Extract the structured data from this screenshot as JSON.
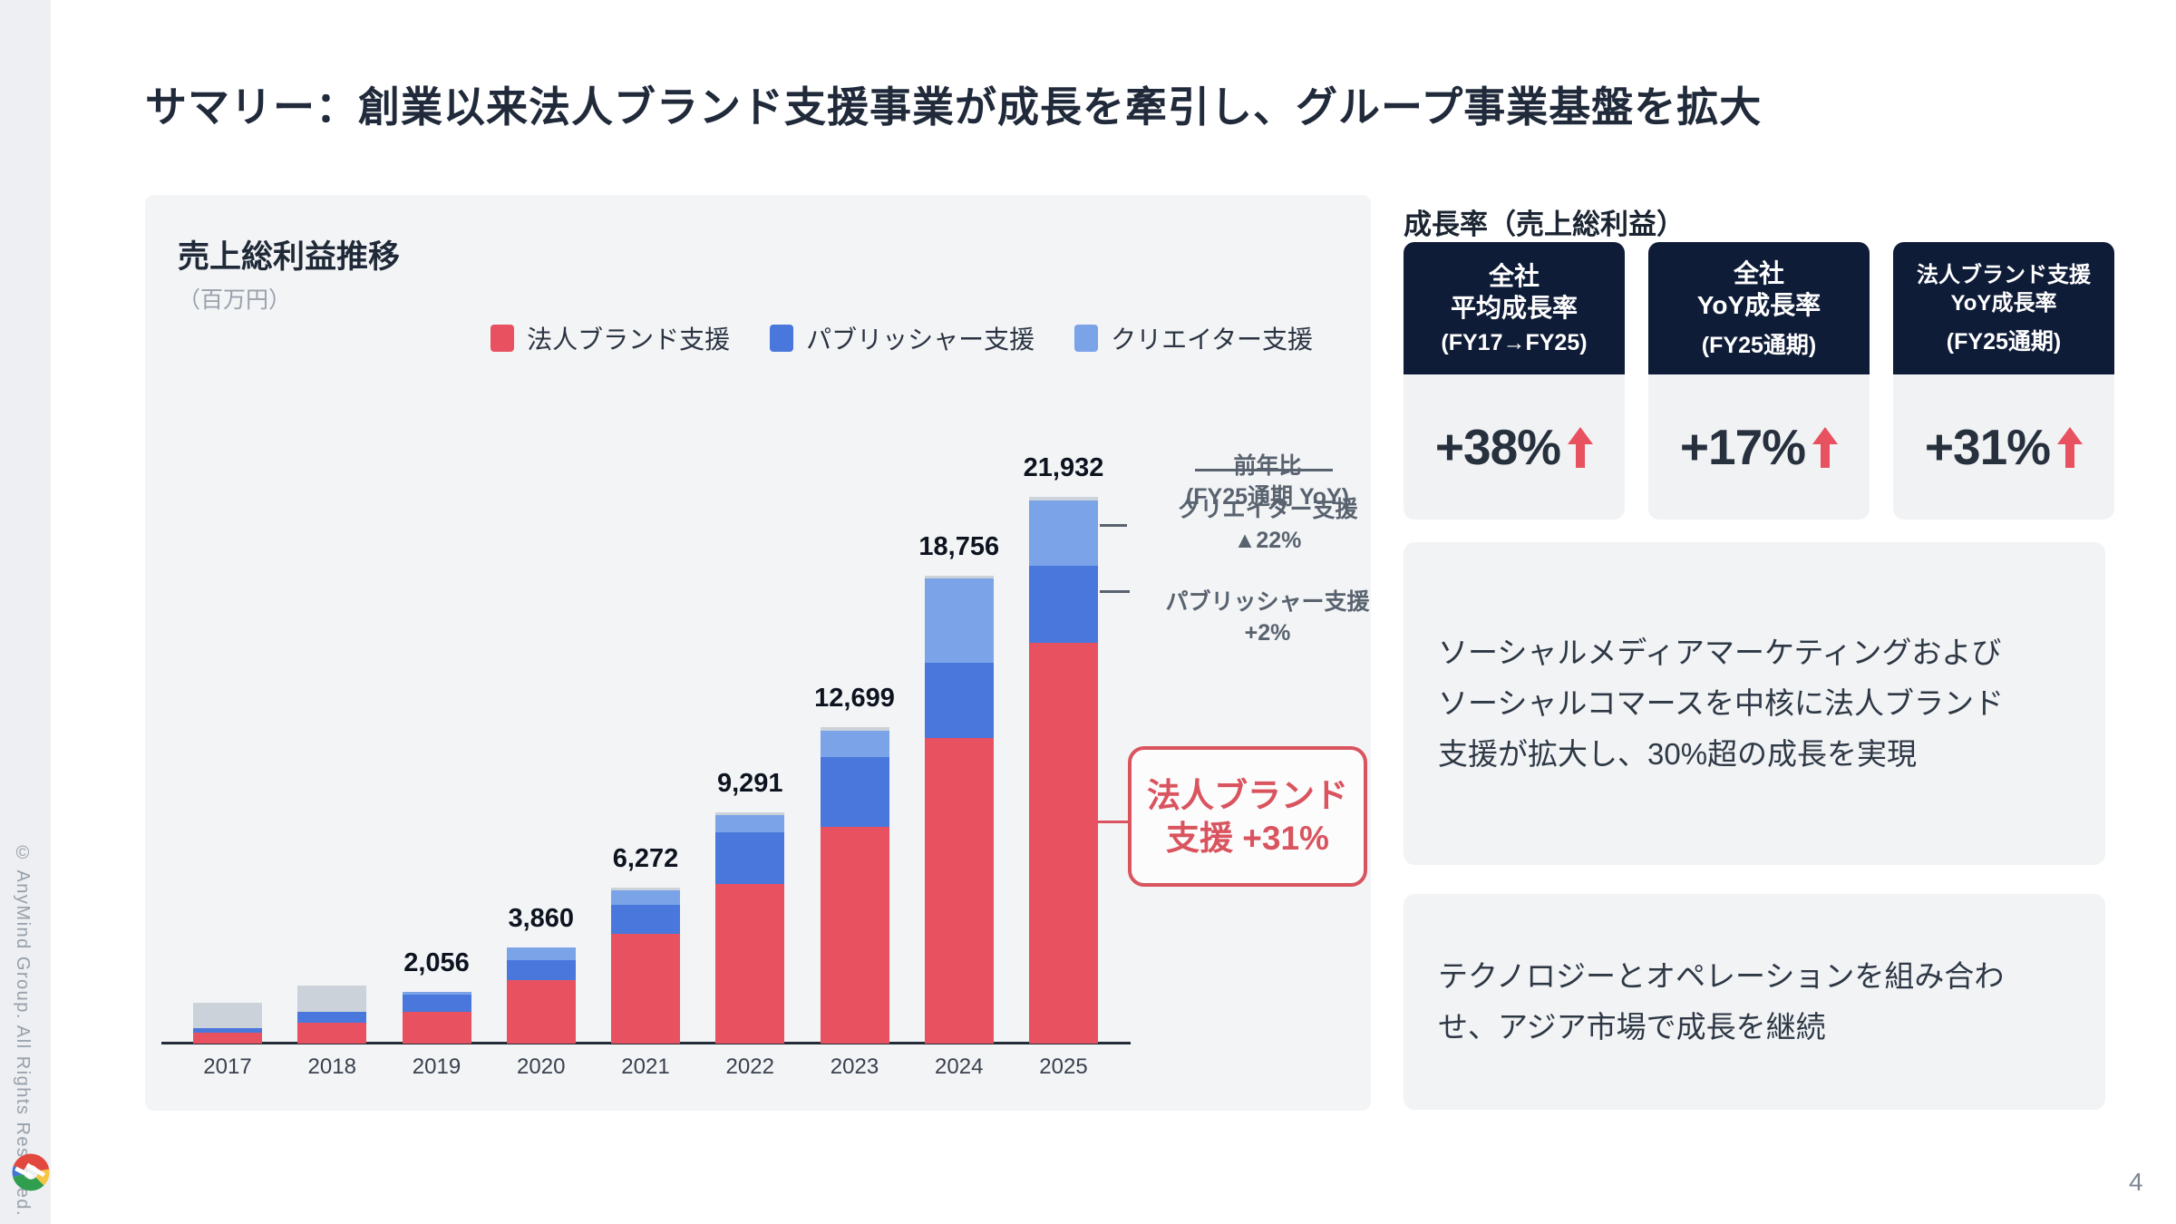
{
  "header": {
    "title": "サマリー：創業以来法人ブランド支援事業が成長を牽引し、グループ事業基盤を拡大"
  },
  "chart_data": {
    "type": "stacked-bar",
    "title": "売上総利益推移",
    "unit_label": "（百万円）",
    "categories": [
      "2017",
      "2018",
      "2019",
      "2020",
      "2021",
      "2022",
      "2023",
      "2024",
      "2025"
    ],
    "series": [
      {
        "name": "法人ブランド支援",
        "color": "#e8515f",
        "values": [
          450,
          840,
          1280,
          2560,
          4390,
          6390,
          8700,
          12250,
          16060
        ]
      },
      {
        "name": "パブリッシャー支援",
        "color": "#4a77dc",
        "values": [
          180,
          440,
          690,
          800,
          1180,
          2100,
          2800,
          3030,
          3090
        ]
      },
      {
        "name": "クリエイター支援",
        "color": "#7ba3e8",
        "values": [
          0,
          0,
          90,
          500,
          560,
          690,
          1050,
          3360,
          2620
        ]
      },
      {
        "name": "gray-unlabeled",
        "color": "#ccd2d9",
        "values": [
          1010,
          1050,
          0,
          0,
          140,
          110,
          150,
          115,
          160
        ]
      }
    ],
    "total_labels": [
      "",
      "",
      "2,056",
      "3,860",
      "6,272",
      "9,291",
      "12,699",
      "18,756",
      "21,932"
    ],
    "ylim": [
      0,
      22000
    ],
    "gridlines": false,
    "legend_position": "top-right",
    "annotations": {
      "yoy_header_line1": "前年比",
      "yoy_header_line2": "(FY25通期 YoY)",
      "creator_line1": "クリエイター支援",
      "creator_line2": "▲22%",
      "publisher_line1": "パブリッシャー支援",
      "publisher_line2": "+2%",
      "brand_box_line1": "法人ブランド",
      "brand_box_line2": "支援 +31%"
    }
  },
  "growth": {
    "section_title": "成長率（売上総利益）",
    "cards": [
      {
        "lines": [
          "全社",
          "平均成長率",
          "(FY17→FY25)"
        ],
        "value": "+38%"
      },
      {
        "lines": [
          "全社",
          "YoY成長率",
          "(FY25通期)"
        ],
        "value": "+17%"
      },
      {
        "lines": [
          "法人ブランド支援",
          "YoY成長率",
          "(FY25通期)"
        ],
        "value": "+31%"
      }
    ]
  },
  "insight_boxes": [
    {
      "lines": [
        "ソーシャルメディアマーケティングおよび",
        "ソーシャルコマースを中核に法人ブランド",
        "支援が拡大し、30%超の成長を実現"
      ]
    },
    {
      "lines": [
        "テクノロジーとオペレーションを組み合わ",
        "せ、アジア市場で成長を継続"
      ]
    }
  ],
  "footer": {
    "copyright": "© AnyMind Group. All Rights Reserved.",
    "page_number": "4"
  },
  "colors": {
    "accent_red": "#e8515f",
    "brand_red": "#e8515f",
    "publisher_blue": "#4a77dc",
    "creator_lightblue": "#7ba3e8",
    "gray_segment": "#ccd2d9",
    "navy_card": "#0f1c38",
    "panel_bg": "#f3f4f6"
  }
}
